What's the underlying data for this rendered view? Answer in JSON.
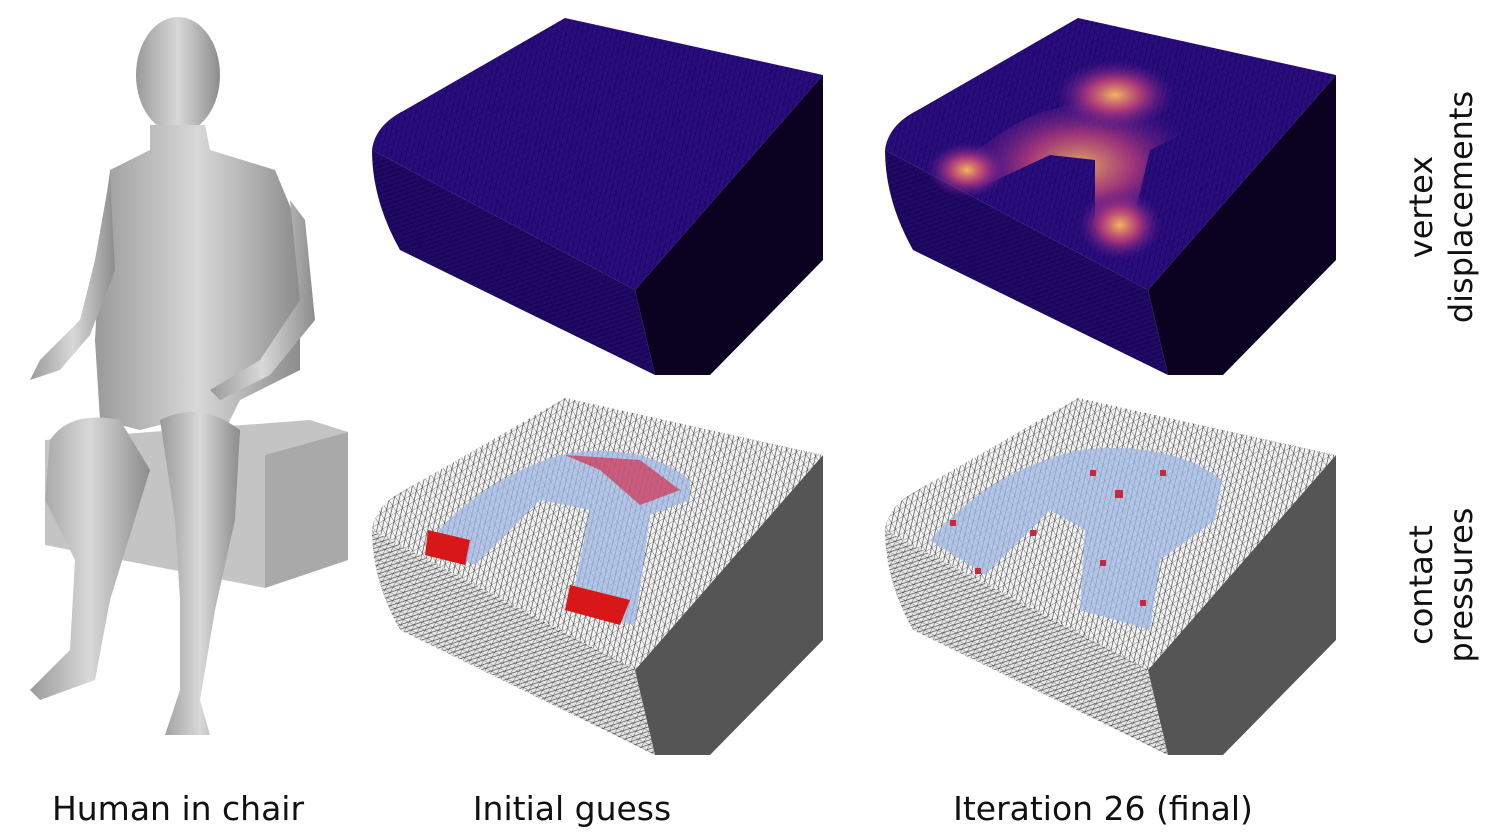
{
  "figure": {
    "columns": [
      "Human in chair",
      "Initial guess",
      "Iteration 26 (final)"
    ],
    "rows": [
      {
        "lines": [
          "vertex",
          "displacements"
        ]
      },
      {
        "lines": [
          "contact",
          "pressures"
        ]
      }
    ]
  }
}
